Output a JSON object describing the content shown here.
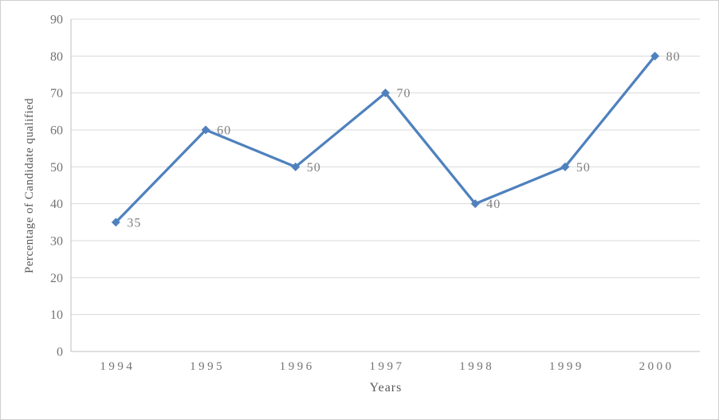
{
  "chart_data": {
    "type": "line",
    "title": "",
    "categories": [
      "1994",
      "1995",
      "1996",
      "1997",
      "1998",
      "1999",
      "2000"
    ],
    "series": [
      {
        "name": "Percentage of Candidate qualified",
        "values": [
          35,
          60,
          50,
          70,
          40,
          50,
          80
        ]
      }
    ],
    "data_labels": [
      "35",
      "60",
      "50",
      "70",
      "40",
      "50",
      "80"
    ],
    "xlabel": "Years",
    "ylabel": "Percentage of Candidate qualified",
    "ylim": [
      0,
      90
    ],
    "yticks": [
      0,
      10,
      20,
      30,
      40,
      50,
      60,
      70,
      80,
      90
    ],
    "grid": true,
    "legend": "none",
    "marker": "diamond",
    "colors": {
      "line": "#4F81BD",
      "marker": "#4F81BD",
      "gridline": "#D9D9D9",
      "axis_line": "#BFBFBF",
      "tick_label": "#737373",
      "data_label": "#808080",
      "axis_title": "#595959",
      "background": "#FFFFFF",
      "frame_border": "#CFCFCF"
    }
  }
}
